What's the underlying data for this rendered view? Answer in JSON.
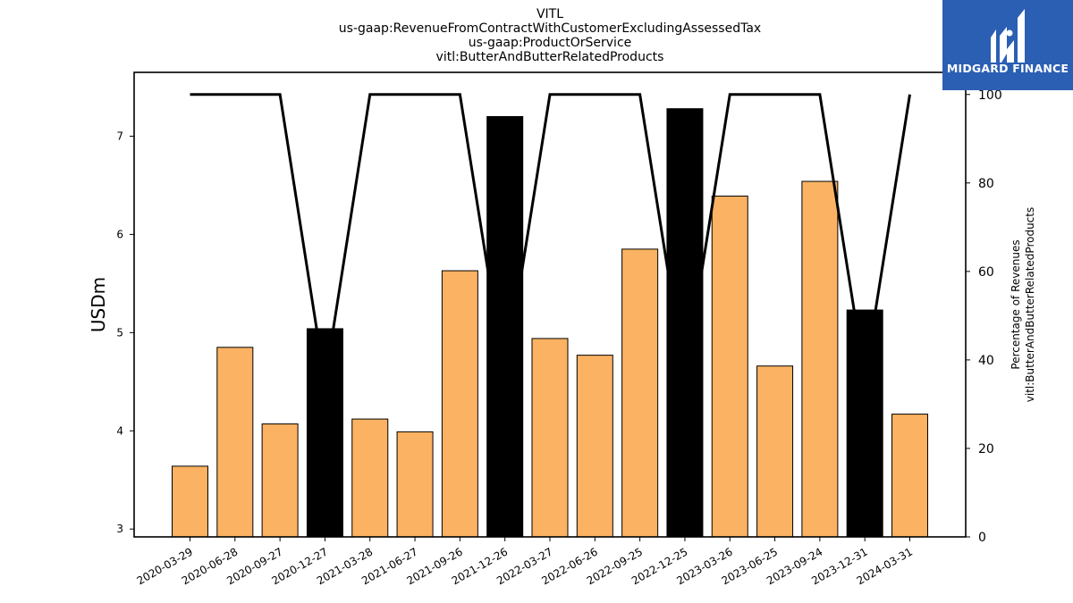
{
  "chart_data": {
    "type": "bar",
    "title_lines": [
      "VITL",
      "us-gaap:RevenueFromContractWithCustomerExcludingAssessedTax",
      "us-gaap:ProductOrService",
      "vitl:ButterAndButterRelatedProducts"
    ],
    "ylabel": "USDm",
    "ylabel_right": [
      "Percentage of Revenues",
      "vitl:ButterAndButterRelatedProducts"
    ],
    "ylim": [
      2.92,
      7.65
    ],
    "ylim_right": [
      0,
      105
    ],
    "yticks": [
      3,
      4,
      5,
      6,
      7
    ],
    "yticks_right": [
      0,
      20,
      40,
      60,
      80,
      100
    ],
    "grid": false,
    "categories": [
      "2020-03-29",
      "2020-06-28",
      "2020-09-27",
      "2020-12-27",
      "2021-03-28",
      "2021-06-27",
      "2021-09-26",
      "2021-12-26",
      "2022-03-27",
      "2022-06-26",
      "2022-09-25",
      "2022-12-25",
      "2023-03-26",
      "2023-06-25",
      "2023-09-24",
      "2023-12-31",
      "2024-03-31"
    ],
    "series": [
      {
        "values": [
          3.64,
          4.85,
          4.07,
          5.04,
          4.12,
          3.99,
          5.63,
          7.2,
          4.94,
          4.77,
          5.85,
          7.28,
          6.39,
          4.66,
          6.54,
          5.23,
          4.17
        ],
        "bar_colors": [
          "#fbb262",
          "#fbb262",
          "#fbb262",
          "#000000",
          "#fbb262",
          "#fbb262",
          "#fbb262",
          "#000000",
          "#fbb262",
          "#fbb262",
          "#fbb262",
          "#000000",
          "#fbb262",
          "#fbb262",
          "#fbb262",
          "#000000",
          "#fbb262"
        ]
      },
      {
        "type": "line",
        "axis": "right",
        "values": [
          100,
          100,
          100,
          35,
          100,
          100,
          100,
          36,
          100,
          100,
          100,
          36,
          100,
          100,
          100,
          36,
          100
        ]
      }
    ]
  },
  "logo": {
    "text": "MIDGARD FINANCE",
    "background": "#2b5fb4"
  }
}
